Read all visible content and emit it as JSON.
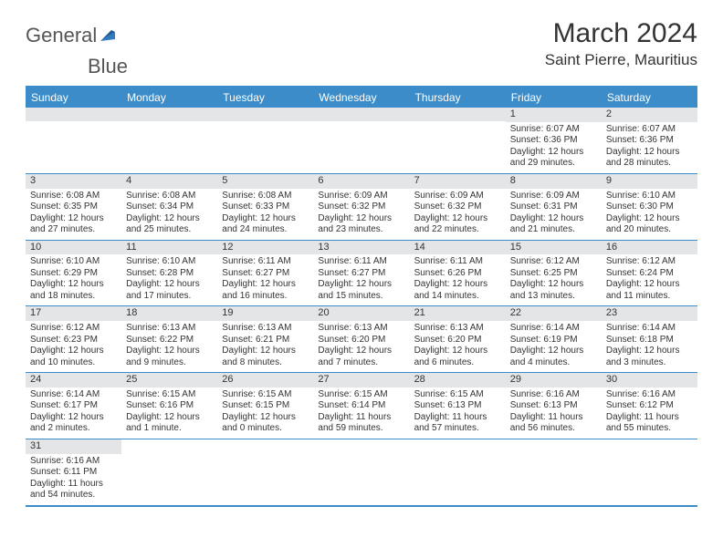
{
  "logo": {
    "text1": "General",
    "text2": "Blue"
  },
  "title": "March 2024",
  "location": "Saint Pierre, Mauritius",
  "colors": {
    "accent": "#3b8cc9",
    "dayBarBg": "#e4e5e6",
    "text": "#333333",
    "bg": "#ffffff"
  },
  "weekdays": [
    "Sunday",
    "Monday",
    "Tuesday",
    "Wednesday",
    "Thursday",
    "Friday",
    "Saturday"
  ],
  "weeks": [
    [
      {
        "num": "",
        "sunrise": "",
        "sunset": "",
        "daylight": ""
      },
      {
        "num": "",
        "sunrise": "",
        "sunset": "",
        "daylight": ""
      },
      {
        "num": "",
        "sunrise": "",
        "sunset": "",
        "daylight": ""
      },
      {
        "num": "",
        "sunrise": "",
        "sunset": "",
        "daylight": ""
      },
      {
        "num": "",
        "sunrise": "",
        "sunset": "",
        "daylight": ""
      },
      {
        "num": "1",
        "sunrise": "Sunrise: 6:07 AM",
        "sunset": "Sunset: 6:36 PM",
        "daylight": "Daylight: 12 hours and 29 minutes."
      },
      {
        "num": "2",
        "sunrise": "Sunrise: 6:07 AM",
        "sunset": "Sunset: 6:36 PM",
        "daylight": "Daylight: 12 hours and 28 minutes."
      }
    ],
    [
      {
        "num": "3",
        "sunrise": "Sunrise: 6:08 AM",
        "sunset": "Sunset: 6:35 PM",
        "daylight": "Daylight: 12 hours and 27 minutes."
      },
      {
        "num": "4",
        "sunrise": "Sunrise: 6:08 AM",
        "sunset": "Sunset: 6:34 PM",
        "daylight": "Daylight: 12 hours and 25 minutes."
      },
      {
        "num": "5",
        "sunrise": "Sunrise: 6:08 AM",
        "sunset": "Sunset: 6:33 PM",
        "daylight": "Daylight: 12 hours and 24 minutes."
      },
      {
        "num": "6",
        "sunrise": "Sunrise: 6:09 AM",
        "sunset": "Sunset: 6:32 PM",
        "daylight": "Daylight: 12 hours and 23 minutes."
      },
      {
        "num": "7",
        "sunrise": "Sunrise: 6:09 AM",
        "sunset": "Sunset: 6:32 PM",
        "daylight": "Daylight: 12 hours and 22 minutes."
      },
      {
        "num": "8",
        "sunrise": "Sunrise: 6:09 AM",
        "sunset": "Sunset: 6:31 PM",
        "daylight": "Daylight: 12 hours and 21 minutes."
      },
      {
        "num": "9",
        "sunrise": "Sunrise: 6:10 AM",
        "sunset": "Sunset: 6:30 PM",
        "daylight": "Daylight: 12 hours and 20 minutes."
      }
    ],
    [
      {
        "num": "10",
        "sunrise": "Sunrise: 6:10 AM",
        "sunset": "Sunset: 6:29 PM",
        "daylight": "Daylight: 12 hours and 18 minutes."
      },
      {
        "num": "11",
        "sunrise": "Sunrise: 6:10 AM",
        "sunset": "Sunset: 6:28 PM",
        "daylight": "Daylight: 12 hours and 17 minutes."
      },
      {
        "num": "12",
        "sunrise": "Sunrise: 6:11 AM",
        "sunset": "Sunset: 6:27 PM",
        "daylight": "Daylight: 12 hours and 16 minutes."
      },
      {
        "num": "13",
        "sunrise": "Sunrise: 6:11 AM",
        "sunset": "Sunset: 6:27 PM",
        "daylight": "Daylight: 12 hours and 15 minutes."
      },
      {
        "num": "14",
        "sunrise": "Sunrise: 6:11 AM",
        "sunset": "Sunset: 6:26 PM",
        "daylight": "Daylight: 12 hours and 14 minutes."
      },
      {
        "num": "15",
        "sunrise": "Sunrise: 6:12 AM",
        "sunset": "Sunset: 6:25 PM",
        "daylight": "Daylight: 12 hours and 13 minutes."
      },
      {
        "num": "16",
        "sunrise": "Sunrise: 6:12 AM",
        "sunset": "Sunset: 6:24 PM",
        "daylight": "Daylight: 12 hours and 11 minutes."
      }
    ],
    [
      {
        "num": "17",
        "sunrise": "Sunrise: 6:12 AM",
        "sunset": "Sunset: 6:23 PM",
        "daylight": "Daylight: 12 hours and 10 minutes."
      },
      {
        "num": "18",
        "sunrise": "Sunrise: 6:13 AM",
        "sunset": "Sunset: 6:22 PM",
        "daylight": "Daylight: 12 hours and 9 minutes."
      },
      {
        "num": "19",
        "sunrise": "Sunrise: 6:13 AM",
        "sunset": "Sunset: 6:21 PM",
        "daylight": "Daylight: 12 hours and 8 minutes."
      },
      {
        "num": "20",
        "sunrise": "Sunrise: 6:13 AM",
        "sunset": "Sunset: 6:20 PM",
        "daylight": "Daylight: 12 hours and 7 minutes."
      },
      {
        "num": "21",
        "sunrise": "Sunrise: 6:13 AM",
        "sunset": "Sunset: 6:20 PM",
        "daylight": "Daylight: 12 hours and 6 minutes."
      },
      {
        "num": "22",
        "sunrise": "Sunrise: 6:14 AM",
        "sunset": "Sunset: 6:19 PM",
        "daylight": "Daylight: 12 hours and 4 minutes."
      },
      {
        "num": "23",
        "sunrise": "Sunrise: 6:14 AM",
        "sunset": "Sunset: 6:18 PM",
        "daylight": "Daylight: 12 hours and 3 minutes."
      }
    ],
    [
      {
        "num": "24",
        "sunrise": "Sunrise: 6:14 AM",
        "sunset": "Sunset: 6:17 PM",
        "daylight": "Daylight: 12 hours and 2 minutes."
      },
      {
        "num": "25",
        "sunrise": "Sunrise: 6:15 AM",
        "sunset": "Sunset: 6:16 PM",
        "daylight": "Daylight: 12 hours and 1 minute."
      },
      {
        "num": "26",
        "sunrise": "Sunrise: 6:15 AM",
        "sunset": "Sunset: 6:15 PM",
        "daylight": "Daylight: 12 hours and 0 minutes."
      },
      {
        "num": "27",
        "sunrise": "Sunrise: 6:15 AM",
        "sunset": "Sunset: 6:14 PM",
        "daylight": "Daylight: 11 hours and 59 minutes."
      },
      {
        "num": "28",
        "sunrise": "Sunrise: 6:15 AM",
        "sunset": "Sunset: 6:13 PM",
        "daylight": "Daylight: 11 hours and 57 minutes."
      },
      {
        "num": "29",
        "sunrise": "Sunrise: 6:16 AM",
        "sunset": "Sunset: 6:13 PM",
        "daylight": "Daylight: 11 hours and 56 minutes."
      },
      {
        "num": "30",
        "sunrise": "Sunrise: 6:16 AM",
        "sunset": "Sunset: 6:12 PM",
        "daylight": "Daylight: 11 hours and 55 minutes."
      }
    ],
    [
      {
        "num": "31",
        "sunrise": "Sunrise: 6:16 AM",
        "sunset": "Sunset: 6:11 PM",
        "daylight": "Daylight: 11 hours and 54 minutes."
      },
      {
        "num": "",
        "sunrise": "",
        "sunset": "",
        "daylight": ""
      },
      {
        "num": "",
        "sunrise": "",
        "sunset": "",
        "daylight": ""
      },
      {
        "num": "",
        "sunrise": "",
        "sunset": "",
        "daylight": ""
      },
      {
        "num": "",
        "sunrise": "",
        "sunset": "",
        "daylight": ""
      },
      {
        "num": "",
        "sunrise": "",
        "sunset": "",
        "daylight": ""
      },
      {
        "num": "",
        "sunrise": "",
        "sunset": "",
        "daylight": ""
      }
    ]
  ]
}
